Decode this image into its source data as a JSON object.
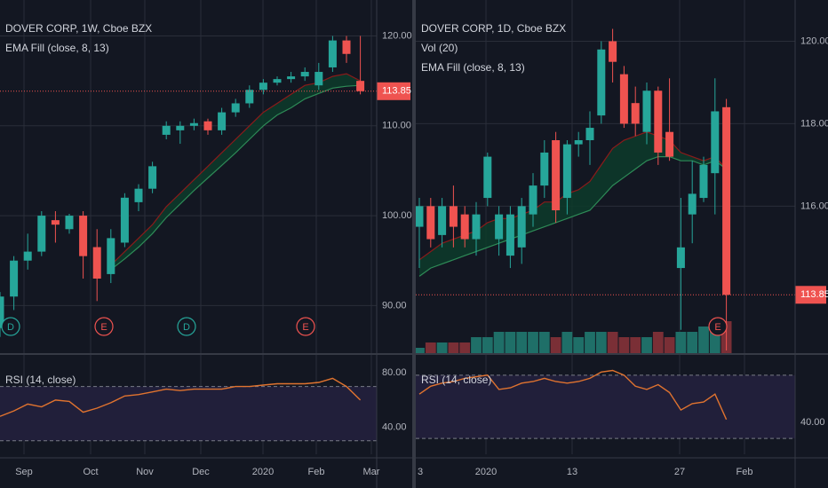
{
  "colors": {
    "bg": "#131722",
    "up": "#26a69a",
    "down": "#ef5350",
    "grid": "#2a2e39",
    "rsi": "#e0732f",
    "emaFast": "#8b1a1a",
    "emaSlow": "#2e8b57",
    "emaFillUp": "#0d3b2a",
    "emaFillDown": "#3b1418",
    "rsiBand": "#211f3a",
    "volUp": "#1f6f68",
    "volDown": "#7a2f36"
  },
  "left": {
    "symbol": "DOVER CORP, 1W, Cboe BZX",
    "indicator": "EMA Fill (close, 8, 13)",
    "rsi_label": "RSI (14, close)",
    "price_badge": "113.85",
    "y_ticks": [
      "120.00",
      "110.00",
      "100.00",
      "90.00"
    ],
    "rsi_ticks": [
      "80.00",
      "40.00"
    ],
    "x_ticks": [
      "Sep",
      "Oct",
      "Nov",
      "Dec",
      "2020",
      "Feb",
      "Mar"
    ],
    "event_markers": [
      "D",
      "E",
      "D",
      "E"
    ]
  },
  "right": {
    "symbol": "DOVER CORP, 1D, Cboe BZX",
    "volume_label": "Vol (20)",
    "indicator": "EMA Fill (close, 8, 13)",
    "rsi_label": "RSI (14, close)",
    "price_badge": "113.85",
    "y_ticks": [
      "120.00",
      "118.00",
      "116.00"
    ],
    "rsi_ticks": [
      "40.00"
    ],
    "x_ticks": [
      "2020",
      "13",
      "27",
      "Feb"
    ],
    "x_tick_partial": "3",
    "event_markers": [
      "E"
    ]
  },
  "chart_data": [
    {
      "type": "candlestick",
      "title": "DOVER CORP, 1W, Cboe BZX",
      "timeframe": "1W",
      "ylim": [
        85,
        124
      ],
      "x_axis": [
        "Sep",
        "Oct",
        "Nov",
        "Dec",
        "2020",
        "Feb",
        "Mar"
      ],
      "last_price": 113.85,
      "candles": [
        {
          "o": 87.5,
          "h": 91.5,
          "l": 86.5,
          "c": 91.0
        },
        {
          "o": 91.0,
          "h": 95.5,
          "l": 89.5,
          "c": 95.0
        },
        {
          "o": 95.0,
          "h": 98.0,
          "l": 94.0,
          "c": 96.0
        },
        {
          "o": 96.0,
          "h": 100.5,
          "l": 95.5,
          "c": 100.0
        },
        {
          "o": 99.5,
          "h": 100.5,
          "l": 97.0,
          "c": 99.0
        },
        {
          "o": 98.5,
          "h": 100.2,
          "l": 98.0,
          "c": 100.0
        },
        {
          "o": 100.0,
          "h": 100.5,
          "l": 93.0,
          "c": 95.5
        },
        {
          "o": 96.5,
          "h": 98.5,
          "l": 90.5,
          "c": 93.0
        },
        {
          "o": 93.5,
          "h": 98.5,
          "l": 92.5,
          "c": 97.5
        },
        {
          "o": 97.0,
          "h": 102.5,
          "l": 96.5,
          "c": 102.0
        },
        {
          "o": 101.5,
          "h": 103.5,
          "l": 100.5,
          "c": 103.0
        },
        {
          "o": 103.0,
          "h": 106.0,
          "l": 102.5,
          "c": 105.5
        },
        {
          "o": 109.0,
          "h": 110.5,
          "l": 108.5,
          "c": 110.0
        },
        {
          "o": 109.5,
          "h": 110.5,
          "l": 108.0,
          "c": 110.0
        },
        {
          "o": 110.0,
          "h": 110.8,
          "l": 109.5,
          "c": 110.3
        },
        {
          "o": 110.5,
          "h": 110.8,
          "l": 109.0,
          "c": 109.5
        },
        {
          "o": 109.5,
          "h": 112.0,
          "l": 109.0,
          "c": 111.5
        },
        {
          "o": 111.5,
          "h": 113.0,
          "l": 111.0,
          "c": 112.5
        },
        {
          "o": 112.5,
          "h": 114.5,
          "l": 112.0,
          "c": 114.0
        },
        {
          "o": 114.0,
          "h": 115.2,
          "l": 113.5,
          "c": 114.8
        },
        {
          "o": 114.8,
          "h": 115.5,
          "l": 114.5,
          "c": 115.2
        },
        {
          "o": 115.2,
          "h": 116.0,
          "l": 114.8,
          "c": 115.5
        },
        {
          "o": 115.5,
          "h": 116.5,
          "l": 115.0,
          "c": 116.0
        },
        {
          "o": 114.5,
          "h": 117.0,
          "l": 114.0,
          "c": 116.0
        },
        {
          "o": 116.5,
          "h": 120.0,
          "l": 116.0,
          "c": 119.5
        },
        {
          "o": 119.5,
          "h": 120.0,
          "l": 117.0,
          "c": 118.0
        },
        {
          "o": 115.0,
          "h": 120.0,
          "l": 113.5,
          "c": 113.85
        }
      ],
      "ema_fast": [
        null,
        null,
        null,
        null,
        null,
        null,
        null,
        null,
        94.5,
        96.0,
        97.5,
        99.0,
        101.0,
        102.5,
        104.0,
        105.5,
        107.0,
        108.5,
        110.0,
        111.5,
        112.5,
        113.5,
        114.5,
        114.8,
        115.5,
        115.8,
        115.0
      ],
      "ema_slow": [
        null,
        null,
        null,
        null,
        null,
        null,
        null,
        null,
        94.0,
        95.2,
        96.5,
        98.0,
        99.8,
        101.3,
        102.8,
        104.2,
        105.6,
        107.0,
        108.5,
        110.0,
        111.2,
        112.0,
        113.0,
        113.6,
        114.2,
        114.4,
        114.5
      ],
      "rsi": {
        "ylim": [
          20,
          90
        ],
        "bands": [
          70,
          30
        ],
        "values": [
          48,
          52,
          57,
          55,
          60,
          59,
          51,
          54,
          58,
          63,
          64,
          66,
          68,
          67,
          68,
          68,
          68,
          70,
          70,
          71,
          72,
          72,
          72,
          73,
          76,
          70,
          60
        ]
      }
    },
    {
      "type": "candlestick",
      "title": "DOVER CORP, 1D, Cboe BZX",
      "timeframe": "1D",
      "ylim": [
        112.5,
        121.0
      ],
      "x_axis": [
        "2020",
        "13",
        "27",
        "Feb"
      ],
      "last_price": 113.85,
      "candles": [
        {
          "o": 115.5,
          "h": 116.2,
          "l": 114.5,
          "c": 116.0
        },
        {
          "o": 116.0,
          "h": 116.2,
          "l": 115.0,
          "c": 115.2
        },
        {
          "o": 115.3,
          "h": 116.2,
          "l": 115.0,
          "c": 116.0
        },
        {
          "o": 116.0,
          "h": 116.5,
          "l": 115.0,
          "c": 115.5
        },
        {
          "o": 115.8,
          "h": 116.0,
          "l": 115.0,
          "c": 115.2
        },
        {
          "o": 115.2,
          "h": 116.1,
          "l": 114.8,
          "c": 115.8
        },
        {
          "o": 116.2,
          "h": 117.3,
          "l": 116.0,
          "c": 117.2
        },
        {
          "o": 115.2,
          "h": 116.0,
          "l": 114.8,
          "c": 115.8
        },
        {
          "o": 114.8,
          "h": 116.0,
          "l": 114.5,
          "c": 115.8
        },
        {
          "o": 115.0,
          "h": 116.2,
          "l": 114.6,
          "c": 116.0
        },
        {
          "o": 115.8,
          "h": 116.8,
          "l": 115.5,
          "c": 116.5
        },
        {
          "o": 116.5,
          "h": 117.6,
          "l": 116.2,
          "c": 117.3
        },
        {
          "o": 117.6,
          "h": 117.8,
          "l": 115.6,
          "c": 115.9
        },
        {
          "o": 116.2,
          "h": 117.6,
          "l": 115.8,
          "c": 117.5
        },
        {
          "o": 117.5,
          "h": 117.8,
          "l": 117.2,
          "c": 117.6
        },
        {
          "o": 117.6,
          "h": 118.3,
          "l": 117.0,
          "c": 117.9
        },
        {
          "o": 118.2,
          "h": 120.0,
          "l": 118.0,
          "c": 119.8
        },
        {
          "o": 120.0,
          "h": 120.3,
          "l": 119.0,
          "c": 119.5
        },
        {
          "o": 119.2,
          "h": 119.4,
          "l": 117.9,
          "c": 118.0
        },
        {
          "o": 118.5,
          "h": 118.9,
          "l": 117.7,
          "c": 118.0
        },
        {
          "o": 117.8,
          "h": 119.0,
          "l": 117.5,
          "c": 118.8
        },
        {
          "o": 118.8,
          "h": 118.9,
          "l": 117.0,
          "c": 117.3
        },
        {
          "o": 117.8,
          "h": 119.1,
          "l": 117.1,
          "c": 117.2
        },
        {
          "o": 114.5,
          "h": 116.2,
          "l": 113.0,
          "c": 115.0
        },
        {
          "o": 115.8,
          "h": 117.1,
          "l": 115.1,
          "c": 116.3
        },
        {
          "o": 116.2,
          "h": 117.2,
          "l": 116.1,
          "c": 117.0
        },
        {
          "o": 116.8,
          "h": 119.1,
          "l": 115.8,
          "c": 118.3
        },
        {
          "o": 118.4,
          "h": 118.6,
          "l": 112.5,
          "c": 113.85
        }
      ],
      "ema_fast": [
        114.7,
        114.9,
        115.1,
        115.2,
        115.3,
        115.4,
        115.6,
        115.7,
        115.7,
        115.8,
        115.9,
        116.1,
        116.1,
        116.3,
        116.4,
        116.6,
        117.0,
        117.4,
        117.6,
        117.7,
        117.8,
        117.7,
        117.6,
        117.3,
        117.2,
        117.1,
        117.2,
        116.9
      ],
      "ema_slow": [
        114.3,
        114.5,
        114.6,
        114.7,
        114.8,
        114.9,
        115.0,
        115.1,
        115.2,
        115.3,
        115.4,
        115.5,
        115.6,
        115.7,
        115.8,
        115.9,
        116.2,
        116.5,
        116.7,
        116.9,
        117.1,
        117.2,
        117.2,
        117.1,
        117.1,
        117.0,
        117.1,
        116.9
      ],
      "volume": [
        1,
        2,
        2,
        2,
        2,
        3,
        3,
        4,
        4,
        4,
        4,
        4,
        3,
        4,
        3,
        4,
        4,
        4,
        3,
        3,
        3,
        4,
        3,
        4,
        4,
        5,
        5,
        6
      ],
      "rsi": {
        "ylim": [
          20,
          80
        ],
        "bands": [
          70,
          30
        ],
        "values": [
          58,
          63,
          65,
          66,
          68,
          69,
          70,
          61,
          62,
          65,
          66,
          68,
          66,
          65,
          66,
          68,
          72,
          73,
          70,
          63,
          61,
          64,
          59,
          48,
          52,
          53,
          58,
          42
        ]
      }
    }
  ]
}
